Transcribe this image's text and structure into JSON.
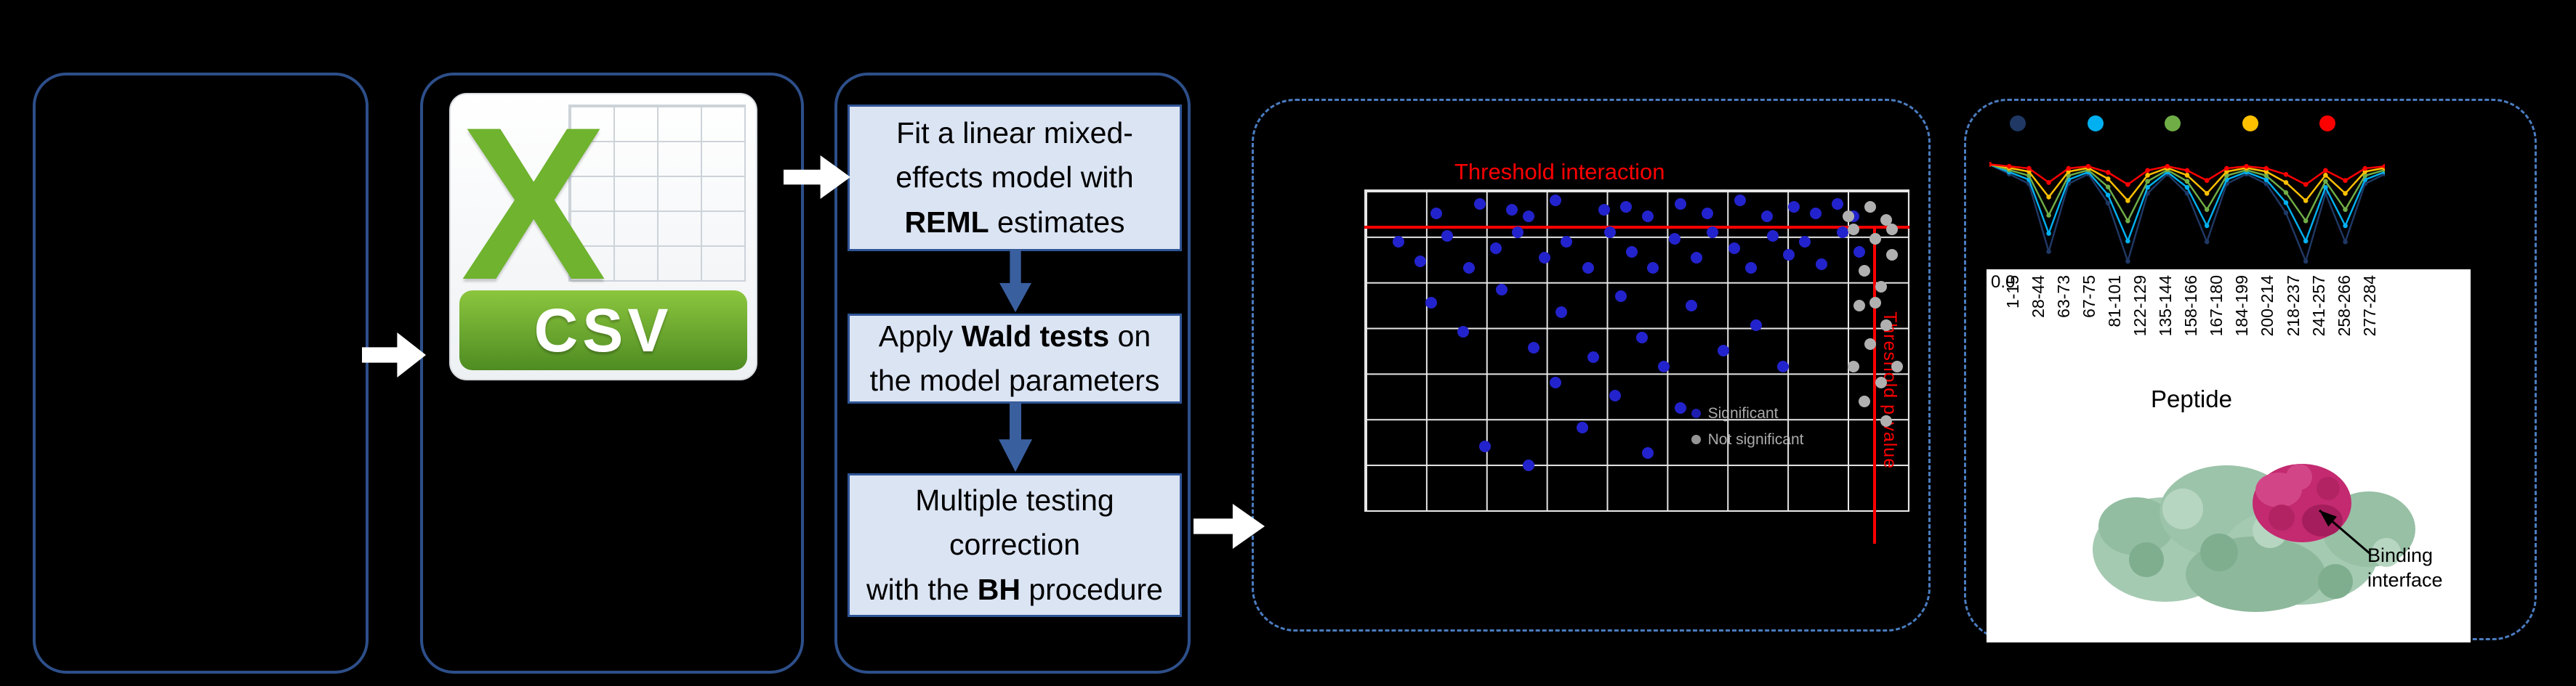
{
  "canvas": {
    "background": "#000000",
    "panel_border": "#2d4f8a",
    "dashed_border": "#4a7cc0"
  },
  "csv_icon": {
    "letter": "X",
    "label": "CSV",
    "green": "#6fb32e"
  },
  "flow": {
    "box_fill": "#dbe4f3",
    "box_border": "#2f5597",
    "box1": {
      "pre": "Fit a linear mixed-\neffects model with\n",
      "bold": "REML",
      "post": " estimates"
    },
    "box2": {
      "pre": "Apply ",
      "bold": "Wald tests",
      "post": " on\nthe model parameters"
    },
    "box3": {
      "pre": "Multiple testing\ncorrection\nwith the ",
      "bold": "BH",
      "post": " procedure"
    }
  },
  "scatter": {
    "title": "Threshold interaction",
    "side_label": "Threshold p-value",
    "threshold_color": "#ff0000",
    "point_color": "#2323cd",
    "ns_color": "#b0b0b0",
    "legend": [
      {
        "label": "Significant",
        "color": "#2323cd"
      },
      {
        "label": "Not significant",
        "color": "#b0b0b0"
      }
    ],
    "blue_points": [
      [
        6,
        16
      ],
      [
        10,
        22
      ],
      [
        13,
        7
      ],
      [
        15,
        14
      ],
      [
        19,
        24
      ],
      [
        21,
        4
      ],
      [
        24,
        18
      ],
      [
        27,
        6
      ],
      [
        28,
        13
      ],
      [
        30,
        8
      ],
      [
        33,
        21
      ],
      [
        35,
        3
      ],
      [
        36,
        38
      ],
      [
        37,
        16
      ],
      [
        41,
        24
      ],
      [
        42,
        52
      ],
      [
        44,
        6
      ],
      [
        45,
        13
      ],
      [
        46,
        64
      ],
      [
        47,
        33
      ],
      [
        48,
        5
      ],
      [
        49,
        19
      ],
      [
        51,
        46
      ],
      [
        52,
        8
      ],
      [
        53,
        24
      ],
      [
        55,
        55
      ],
      [
        57,
        15
      ],
      [
        58,
        4
      ],
      [
        60,
        36
      ],
      [
        61,
        21
      ],
      [
        63,
        7
      ],
      [
        64,
        13
      ],
      [
        66,
        50
      ],
      [
        68,
        18
      ],
      [
        69,
        3
      ],
      [
        71,
        24
      ],
      [
        72,
        42
      ],
      [
        74,
        8
      ],
      [
        75,
        14
      ],
      [
        77,
        55
      ],
      [
        78,
        20
      ],
      [
        79,
        5
      ],
      [
        81,
        16
      ],
      [
        83,
        7
      ],
      [
        84,
        23
      ],
      [
        87,
        4
      ],
      [
        88,
        13
      ],
      [
        90,
        8
      ],
      [
        91,
        19
      ],
      [
        12,
        35
      ],
      [
        18,
        44
      ],
      [
        25,
        31
      ],
      [
        31,
        49
      ],
      [
        35,
        60
      ],
      [
        40,
        74
      ],
      [
        22,
        80
      ],
      [
        30,
        86
      ],
      [
        52,
        82
      ],
      [
        58,
        68
      ]
    ],
    "gray_points": [
      [
        93,
        5
      ],
      [
        96,
        9
      ],
      [
        90,
        12
      ],
      [
        94,
        15
      ],
      [
        97,
        20
      ],
      [
        92,
        25
      ],
      [
        95,
        30
      ],
      [
        91,
        36
      ],
      [
        96,
        42
      ],
      [
        93,
        48
      ],
      [
        90,
        55
      ],
      [
        95,
        60
      ],
      [
        92,
        66
      ],
      [
        96,
        72
      ],
      [
        94,
        35
      ],
      [
        97,
        12
      ],
      [
        89,
        8
      ],
      [
        98,
        55
      ]
    ]
  },
  "uptake": {
    "zero_label": "0.0",
    "x_title": "Peptide",
    "x_labels": [
      "1-15",
      "28-44",
      "63-73",
      "67-75",
      "81-101",
      "122-129",
      "135-144",
      "158-166",
      "167-180",
      "184-199",
      "200-214",
      "218-237",
      "241-257",
      "258-266",
      "277-284"
    ],
    "legend_colors": [
      "#1f3864",
      "#00b0f0",
      "#70ad47",
      "#ffc000",
      "#ff0000"
    ],
    "series": [
      {
        "color": "#1f3864",
        "y": [
          6,
          8.4,
          10.8,
          27.6,
          10.8,
          8.4,
          15.6,
          30,
          13.2,
          8.4,
          13.2,
          25.2,
          10.8,
          8.4,
          10.8,
          18,
          30,
          13.2,
          25.2,
          10.8,
          8.4
        ]
      },
      {
        "color": "#00b0f0",
        "y": [
          6,
          7.9,
          9.8,
          23.1,
          9.8,
          7.9,
          13.6,
          25,
          11.7,
          7.9,
          11.7,
          21.2,
          9.8,
          7.9,
          9.8,
          15.5,
          25,
          11.7,
          21.2,
          9.8,
          7.9
        ]
      },
      {
        "color": "#70ad47",
        "y": [
          6,
          7.4,
          8.8,
          18.6,
          8.8,
          7.4,
          11.6,
          20,
          10.2,
          7.4,
          10.2,
          17.2,
          8.8,
          7.4,
          8.8,
          13,
          20,
          10.2,
          17.2,
          8.8,
          7.4
        ]
      },
      {
        "color": "#ffc000",
        "y": [
          6,
          6.9,
          7.8,
          14.1,
          7.8,
          6.9,
          9.6,
          15,
          8.7,
          6.9,
          8.7,
          13.2,
          7.8,
          6.9,
          7.8,
          10.5,
          15,
          8.7,
          13.2,
          7.8,
          6.9
        ]
      },
      {
        "color": "#ff0000",
        "y": [
          6,
          6.5,
          7,
          10.5,
          7,
          6.5,
          8,
          11,
          7.5,
          6.5,
          7.5,
          10,
          7,
          6.5,
          7,
          8.5,
          11,
          7.5,
          10,
          7,
          6.5
        ]
      }
    ]
  },
  "structure": {
    "annotation": "Binding interface"
  }
}
